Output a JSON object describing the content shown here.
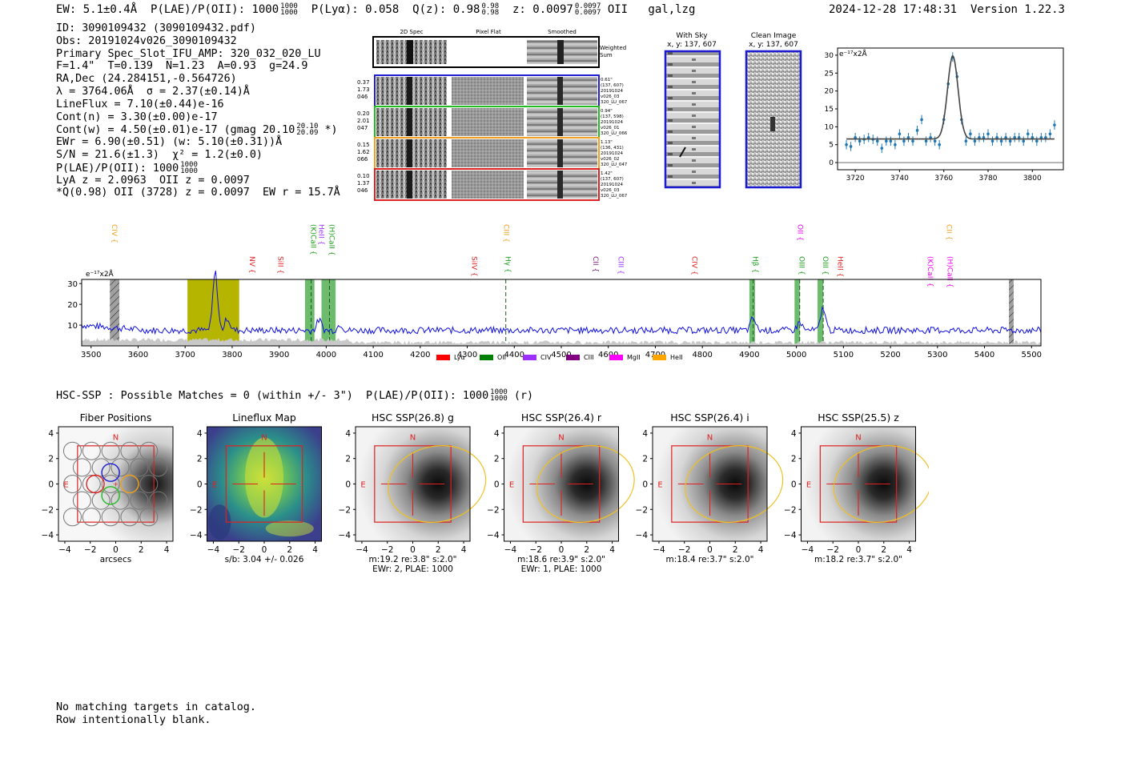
{
  "header": {
    "ew": "EW: 5.1±0.4Å",
    "plae_label": "P(LAE)/P(OII): 1000",
    "plae_sup": "1000",
    "plae_sub": "1000",
    "plya": "P(Lyα): 0.058",
    "qz": "Q(z): 0.98",
    "qz_sup": "0.98",
    "qz_sub": "0.98",
    "z": "z: 0.0097",
    "z_sup": "0.0097",
    "z_sub": "0.0097",
    "z_line": "OII",
    "flags": "gal,lzg",
    "datetime": "2024-12-28 17:48:31",
    "version": "Version 1.22.3"
  },
  "info": {
    "id": "ID: 3090109432 (3090109432.pdf)",
    "obs": "Obs: 20191024v026_3090109432",
    "primary": "Primary Spec_Slot_IFU_AMP: 320_032_020_LU",
    "fwhm": "F=1.4\"  T=0.139  N=1.23  A=0.93  g=24.9",
    "radec": "RA,Dec (24.284151,-0.564726)",
    "lambda": "λ = 3764.06Å  σ = 2.37(±0.14)Å",
    "lineflux": "LineFlux = 7.10(±0.44)e-16",
    "contn": "Cont(n) = 3.30(±0.00)e-17",
    "contw": "Cont(w) = 4.50(±0.01)e-17 (gmag 20.10",
    "contw_sup": "20.10",
    "contw_sub": "20.09",
    "contw_end": "*)",
    "ewr": "EWr = 6.90(±0.51) (w: 5.10(±0.31))Å",
    "sn": "S/N = 21.6(±1.3)  χ² = 1.2(±0.0)",
    "plae": "P(LAE)/P(OII): 1000",
    "plae_sup": "1000",
    "plae_sub": "1000",
    "lya_z": "LyA z = 2.0963  OII z = 0.0097",
    "qline": "*Q(0.98) OII (3728) z = 0.0097  EW r = 15.7Å"
  },
  "spec2d": {
    "col_headers": [
      "2D Spec",
      "Pixel Flat",
      "Smoothed"
    ],
    "weighted_sum": [
      "Weighted",
      "Sum"
    ],
    "rows": [
      {
        "left": [
          "0.37",
          "1.73",
          "046"
        ],
        "right": [
          "0.61\"",
          "(137, 607)",
          "20191024",
          "v026_03",
          "320_LU_067"
        ],
        "color": "#1f1fd0"
      },
      {
        "left": [
          "0.20",
          "2.01",
          "047"
        ],
        "right": [
          "0.94\"",
          "(137, 598)",
          "20191024",
          "v026_01",
          "320_LU_066"
        ],
        "color": "#22bb22"
      },
      {
        "left": [
          "0.15",
          "1.62",
          "066"
        ],
        "right": [
          "1.13\"",
          "(136, 431)",
          "20191024",
          "v026_02",
          "320_LU_047"
        ],
        "color": "#f0a020"
      },
      {
        "left": [
          "0.10",
          "1.37",
          "046"
        ],
        "right": [
          "1.42\"",
          "(137, 607)",
          "20191024",
          "v026_03",
          "320_LU_067"
        ],
        "color": "#dd2020"
      }
    ]
  },
  "cutouts": {
    "with_sky": {
      "title": "With Sky",
      "coords": "x, y: 137, 607"
    },
    "clean": {
      "title": "Clean Image",
      "coords": "x, y: 137, 607"
    }
  },
  "chart_data": [
    {
      "type": "scatter",
      "name": "line-fit",
      "ylabel": "e⁻¹⁷x2Å",
      "xlim": [
        3712,
        3814
      ],
      "ylim": [
        -2,
        32
      ],
      "xticks": [
        3720,
        3740,
        3760,
        3780,
        3800
      ],
      "yticks": [
        0,
        5,
        10,
        15,
        20,
        25,
        30
      ],
      "points_x": [
        3716,
        3718,
        3720,
        3722,
        3724,
        3726,
        3728,
        3730,
        3732,
        3734,
        3736,
        3738,
        3740,
        3742,
        3744,
        3746,
        3748,
        3750,
        3752,
        3754,
        3756,
        3758,
        3760,
        3762,
        3764,
        3766,
        3768,
        3770,
        3772,
        3774,
        3776,
        3778,
        3780,
        3782,
        3784,
        3786,
        3788,
        3790,
        3792,
        3794,
        3796,
        3798,
        3800,
        3802,
        3804,
        3806,
        3808,
        3810
      ],
      "points_y": [
        5,
        4.5,
        7,
        6,
        6.5,
        7,
        6.5,
        6,
        4,
        6,
        6,
        5,
        8,
        6,
        7,
        6,
        9,
        12,
        6,
        7,
        6,
        5,
        12,
        22,
        29.5,
        24,
        12,
        6,
        8,
        6,
        7,
        7,
        8,
        6,
        7,
        6,
        7,
        6,
        7,
        7,
        6,
        8,
        7,
        6,
        7,
        7,
        8,
        10.5
      ],
      "fit": {
        "continuum": 6.6,
        "amplitude": 23.2,
        "center": 3764.06,
        "sigma": 2.37
      }
    },
    {
      "type": "line",
      "name": "full-spectrum",
      "ylabel": "e⁻¹⁷x2Å",
      "xlim": [
        3480,
        5520
      ],
      "ylim": [
        0,
        32
      ],
      "xticks": [
        3500,
        3600,
        3700,
        3800,
        3900,
        4000,
        4100,
        4200,
        4300,
        4400,
        4500,
        4600,
        4700,
        4800,
        4900,
        5000,
        5100,
        5200,
        5300,
        5400,
        5500
      ],
      "yticks": [
        10,
        20,
        30
      ],
      "continuum": 7.5,
      "peaks": [
        {
          "x": 3764,
          "height": 28
        },
        {
          "x": 3790,
          "height": 6
        },
        {
          "x": 3985,
          "height": 5
        },
        {
          "x": 4030,
          "height": 3
        },
        {
          "x": 4908,
          "height": 6
        },
        {
          "x": 5007,
          "height": 4
        },
        {
          "x": 5057,
          "height": 11
        }
      ],
      "lines": [
        {
          "label": "CIV",
          "x": 3545,
          "color": "#f0a020",
          "high": true
        },
        {
          "label": "NV",
          "x": 3838,
          "color": "#dd2020",
          "high": false
        },
        {
          "label": "SiII",
          "x": 3898,
          "color": "#dd2020",
          "high": false
        },
        {
          "label": "(K)CaII",
          "x": 3968,
          "color": "#1a9a1a",
          "high": true
        },
        {
          "label": "HeII",
          "x": 3985,
          "color": "#9b30ff",
          "high": true
        },
        {
          "label": "(H)CaII",
          "x": 4007,
          "color": "#1a9a1a",
          "high": true
        },
        {
          "label": "SiIV",
          "x": 4310,
          "color": "#dd2020",
          "high": false
        },
        {
          "label": "CIII",
          "x": 4378,
          "color": "#f0a020",
          "high": true
        },
        {
          "label": "Hγ",
          "x": 4382,
          "color": "#1a9a1a",
          "high": false
        },
        {
          "label": "CII",
          "x": 4568,
          "color": "#7a1a7a",
          "high": false
        },
        {
          "label": "CIII",
          "x": 4622,
          "color": "#9b30ff",
          "high": false
        },
        {
          "label": "CIV",
          "x": 4778,
          "color": "#dd2020",
          "high": false
        },
        {
          "label": "Hβ",
          "x": 4908,
          "color": "#1a9a1a",
          "high": false
        },
        {
          "label": "OII",
          "x": 5003,
          "color": "#ee00ee",
          "high": true
        },
        {
          "label": "OIII",
          "x": 5007,
          "color": "#1a9a1a",
          "high": false
        },
        {
          "label": "OIII",
          "x": 5057,
          "color": "#1a9a1a",
          "high": false
        },
        {
          "label": "HeII",
          "x": 5088,
          "color": "#dd2020",
          "high": false
        },
        {
          "label": "(K)CaII",
          "x": 5280,
          "color": "#ee00ee",
          "high": false
        },
        {
          "label": "CII",
          "x": 5320,
          "color": "#f0a020",
          "high": true
        },
        {
          "label": "(H)CaII",
          "x": 5322,
          "color": "#ee00ee",
          "high": false
        }
      ],
      "shaded_regions": [
        {
          "x0": 3705,
          "x1": 3815,
          "color": "#b5b500"
        },
        {
          "x0": 3955,
          "x1": 3975,
          "color": "#6dbb6d"
        },
        {
          "x0": 3990,
          "x1": 4020,
          "color": "#6dbb6d"
        },
        {
          "x0": 4900,
          "x1": 4912,
          "color": "#6dbb6d"
        },
        {
          "x0": 4996,
          "x1": 5007,
          "color": "#6dbb6d"
        },
        {
          "x0": 5045,
          "x1": 5057,
          "color": "#6dbb6d"
        }
      ],
      "masked_regions": [
        {
          "x0": 3540,
          "x1": 3560
        },
        {
          "x0": 5452,
          "x1": 5462
        }
      ],
      "legend": [
        {
          "label": "Lyα",
          "color": "#ff0000"
        },
        {
          "label": "OII",
          "color": "#008000"
        },
        {
          "label": "CIV",
          "color": "#9b30ff"
        },
        {
          "label": "CIII",
          "color": "#800080"
        },
        {
          "label": "MgII",
          "color": "#ff00ff"
        },
        {
          "label": "HeII",
          "color": "#ffa500"
        }
      ]
    }
  ],
  "hsc": {
    "title_prefix": "HSC-SSP : Possible Matches = 0 (within +/- 3\")  P(LAE)/P(OII): 1000",
    "sup": "1000",
    "sub": "1000",
    "title_suffix": "(r)",
    "tick_labels_x": [
      "−4",
      "−2",
      "0",
      "2",
      "4"
    ],
    "tick_labels_y": [
      "4",
      "2",
      "0",
      "−2",
      "−4"
    ],
    "north": "N",
    "east": "E",
    "panels": [
      {
        "title": "Fiber Positions",
        "caption1": "arcsecs",
        "caption2": ""
      },
      {
        "title": "Lineflux Map",
        "caption1": "s/b: 3.04 +/- 0.026",
        "caption2": ""
      },
      {
        "title": "HSC SSP(26.8) g",
        "caption1": "m:19.2  re:3.8\"  s:2.0\"",
        "caption2": "EWr: 2, PLAE: 1000"
      },
      {
        "title": "HSC SSP(26.4) r",
        "caption1": "m:18.6  re:3.9\"  s:2.0\"",
        "caption2": "EWr: 1, PLAE: 1000"
      },
      {
        "title": "HSC SSP(26.4) i",
        "caption1": "m:18.4  re:3.7\"  s:2.0\"",
        "caption2": ""
      },
      {
        "title": "HSC SSP(25.5) z",
        "caption1": "m:18.2  re:3.7\"  s:2.0\"",
        "caption2": ""
      }
    ]
  },
  "footer": {
    "line1": "No matching targets in catalog.",
    "line2": "Row intentionally blank."
  }
}
